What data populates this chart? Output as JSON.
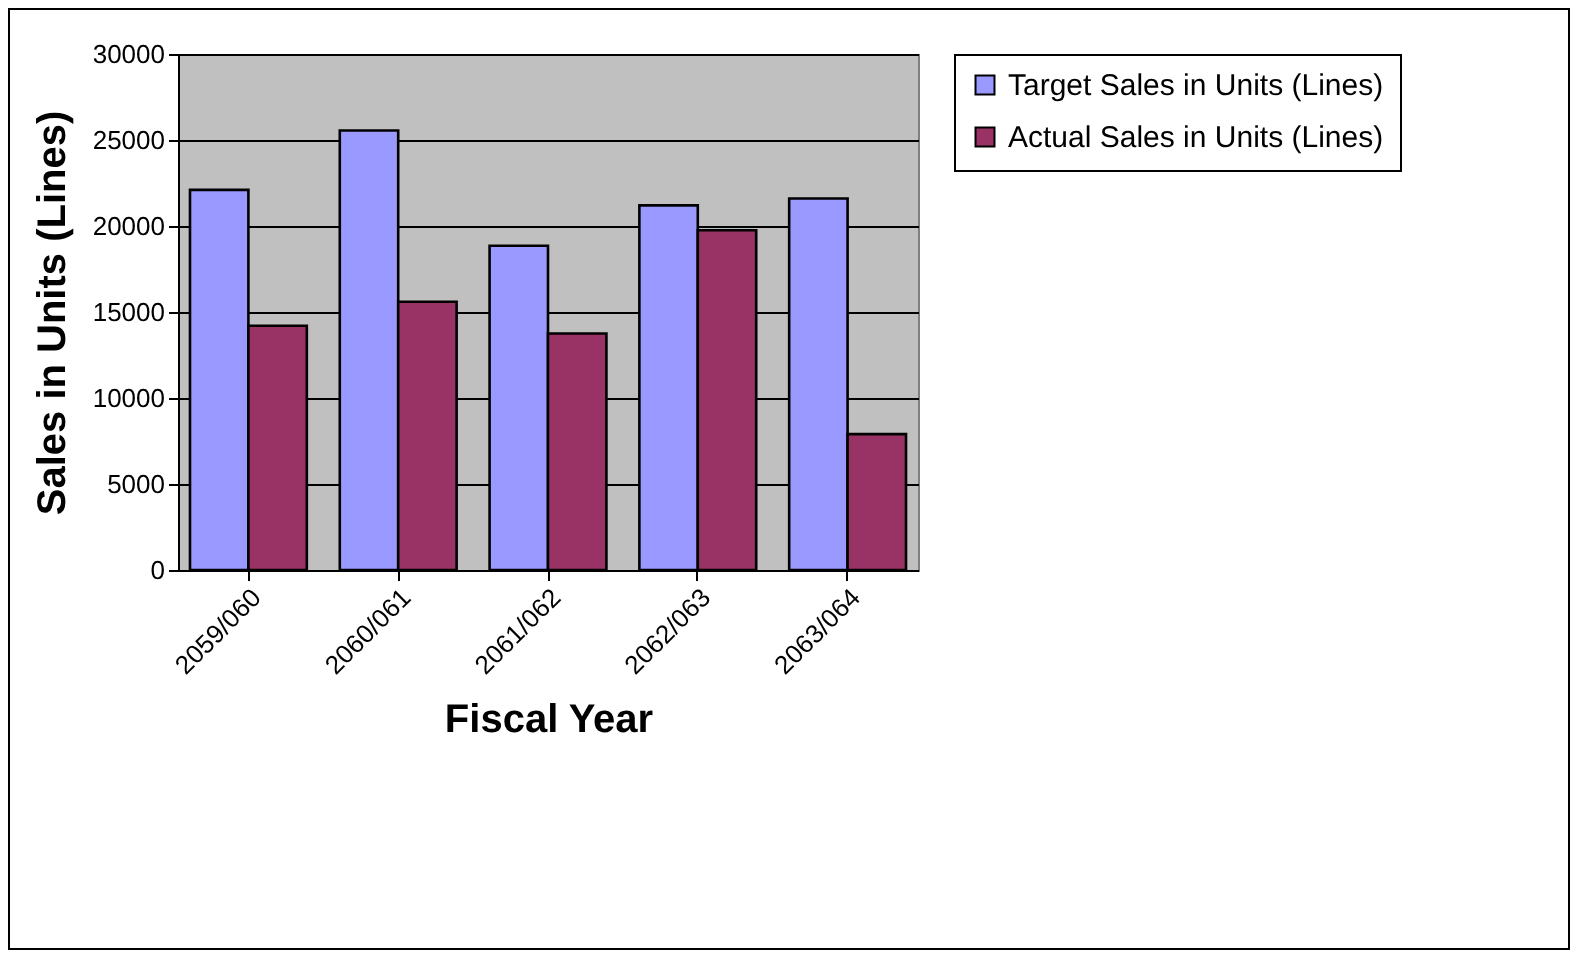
{
  "chart_data": {
    "type": "bar",
    "xlabel": "Fiscal Year",
    "ylabel": "Sales in Units (Lines)",
    "categories": [
      "2059/060",
      "2060/061",
      "2061/062",
      "2062/063",
      "2063/064"
    ],
    "series": [
      {
        "name": "Target Sales in Units (Lines)",
        "color": "#9999ff",
        "values": [
          22100,
          25550,
          18850,
          21200,
          21600
        ]
      },
      {
        "name": "Actual Sales in Units (Lines)",
        "color": "#993366",
        "values": [
          14200,
          15600,
          13750,
          19750,
          7900
        ]
      }
    ],
    "ylim": [
      0,
      30000
    ],
    "yticks": [
      0,
      5000,
      10000,
      15000,
      20000,
      25000,
      30000
    ],
    "grid": "y",
    "legend": "right"
  }
}
